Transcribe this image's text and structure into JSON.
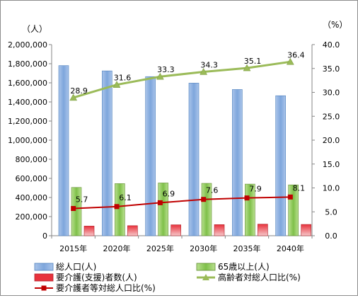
{
  "chart_data": {
    "type": "bar",
    "categories": [
      "2015年",
      "2020年",
      "2025年",
      "2030年",
      "2035年",
      "2040年"
    ],
    "y_left": {
      "unit": "（人）",
      "min": 0,
      "max": 2000000,
      "step": 200000,
      "ticks": [
        "0",
        "200,000",
        "400,000",
        "600,000",
        "800,000",
        "1,000,000",
        "1,200,000",
        "1,400,000",
        "1,600,000",
        "1,800,000",
        "2,000,000"
      ]
    },
    "y_right": {
      "unit": "（%）",
      "min": 0,
      "max": 40,
      "step": 5,
      "ticks": [
        "0.0",
        "5.0",
        "10.0",
        "15.0",
        "20.0",
        "25.0",
        "30.0",
        "35.0",
        "40.0"
      ]
    },
    "series": [
      {
        "name": "総人口(人)",
        "kind": "bar",
        "axis": "left",
        "color": "#8eb4e3",
        "values": [
          1780000,
          1725000,
          1665000,
          1597000,
          1530000,
          1465000
        ]
      },
      {
        "name": "65歳以上(人)",
        "kind": "bar",
        "axis": "left",
        "color": "#92d050",
        "values": [
          505000,
          545000,
          552000,
          548000,
          540000,
          532000
        ]
      },
      {
        "name": "要介護(支援)者数(人)",
        "kind": "bar",
        "axis": "left",
        "color": "#e8323c",
        "values": [
          101000,
          105000,
          114000,
          116000,
          121000,
          118000
        ]
      },
      {
        "name": "高齢者対総人口比(%)",
        "kind": "line",
        "axis": "right",
        "color": "#9bbb59",
        "marker": "triangle",
        "values": [
          28.9,
          31.6,
          33.3,
          34.3,
          35.1,
          36.4
        ],
        "labels": [
          "28.9",
          "31.6",
          "33.3",
          "34.3",
          "35.1",
          "36.4"
        ]
      },
      {
        "name": "要介護者等対総人口比(%)",
        "kind": "line",
        "axis": "right",
        "color": "#c00000",
        "marker": "square",
        "values": [
          5.7,
          6.1,
          6.9,
          7.6,
          7.9,
          8.1
        ],
        "labels": [
          "5.7",
          "6.1",
          "6.9",
          "7.6",
          "7.9",
          "8.1"
        ]
      }
    ],
    "grid": false,
    "legend": "bottom"
  }
}
